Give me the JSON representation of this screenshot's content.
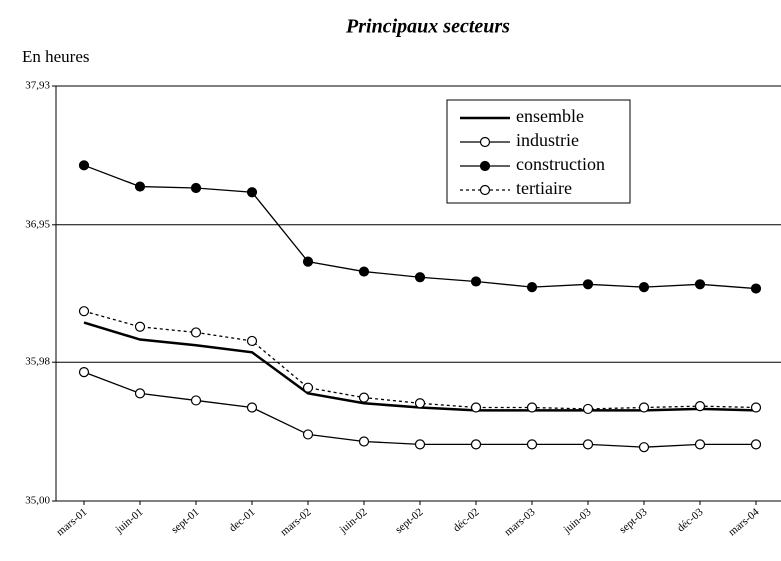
{
  "chart_data": {
    "type": "line",
    "title": "Principaux secteurs",
    "y_label": "En heures",
    "categories": [
      "mars-01",
      "juin-01",
      "sept-01",
      "dec-01",
      "mars-02",
      "juin-02",
      "sept-02",
      "déc-02",
      "mars-03",
      "juin-03",
      "sept-03",
      "déc-03",
      "mars-04"
    ],
    "series": [
      {
        "name": "ensemble",
        "color": "#000000",
        "marker": "none",
        "dash": false,
        "values": [
          36.26,
          36.14,
          36.1,
          36.05,
          35.76,
          35.69,
          35.66,
          35.64,
          35.64,
          35.64,
          35.64,
          35.65,
          35.64
        ]
      },
      {
        "name": "industrie",
        "color": "#000000",
        "marker": "open",
        "dash": false,
        "values": [
          35.91,
          35.76,
          35.71,
          35.66,
          35.47,
          35.42,
          35.4,
          35.4,
          35.4,
          35.4,
          35.38,
          35.4,
          35.4
        ]
      },
      {
        "name": "construction",
        "color": "#000000",
        "marker": "filled",
        "dash": false,
        "values": [
          37.37,
          37.22,
          37.21,
          37.18,
          36.69,
          36.62,
          36.58,
          36.55,
          36.51,
          36.53,
          36.51,
          36.53,
          36.5
        ]
      },
      {
        "name": "tertiaire",
        "color": "#000000",
        "marker": "open",
        "dash": true,
        "values": [
          36.34,
          36.23,
          36.19,
          36.13,
          35.8,
          35.73,
          35.69,
          35.66,
          35.66,
          35.65,
          35.66,
          35.67,
          35.66
        ]
      }
    ],
    "ylim": [
      35.0,
      37.93
    ],
    "yticks": [
      {
        "value": 35.0,
        "label": "35,00"
      },
      {
        "value": 35.98,
        "label": "35,98"
      },
      {
        "value": 36.95,
        "label": "36,95"
      },
      {
        "value": 37.93,
        "label": "37,93"
      }
    ],
    "grid": true,
    "legend": "top-right"
  }
}
